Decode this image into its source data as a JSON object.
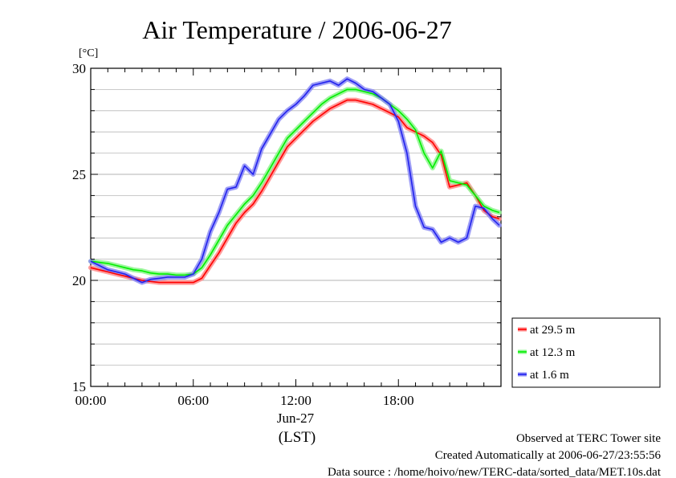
{
  "chart_data": {
    "type": "line",
    "title": "Air Temperature / 2006-06-27",
    "y_unit_label": "[°C]",
    "ylim": [
      15,
      30
    ],
    "y_ticks": [
      "15",
      "20",
      "25",
      "30"
    ],
    "xlim": [
      0,
      24
    ],
    "x_ticks": [
      "00:00",
      "06:00",
      "12:00",
      "18:00"
    ],
    "x_date_label": "Jun-27",
    "x_axis_label": "(LST)",
    "grid": true,
    "legend_position": "right, below plot",
    "series": [
      {
        "name": "at 29.5 m",
        "color": "#ff0000",
        "x": [
          0,
          0.5,
          1,
          1.5,
          2,
          2.5,
          3,
          3.5,
          4,
          4.5,
          5,
          5.5,
          6,
          6.5,
          7,
          7.5,
          8,
          8.5,
          9,
          9.5,
          10,
          10.5,
          11,
          11.5,
          12,
          12.5,
          13,
          13.5,
          14,
          14.5,
          15,
          15.5,
          16,
          16.5,
          17,
          17.5,
          18,
          18.5,
          19,
          19.5,
          20,
          20.5,
          21,
          21.5,
          22,
          22.5,
          23,
          23.5,
          23.9
        ],
        "values": [
          20.6,
          20.5,
          20.4,
          20.3,
          20.2,
          20.1,
          20.0,
          19.95,
          19.9,
          19.9,
          19.9,
          19.9,
          19.9,
          20.1,
          20.7,
          21.3,
          22.0,
          22.7,
          23.2,
          23.6,
          24.2,
          24.9,
          25.6,
          26.3,
          26.7,
          27.1,
          27.5,
          27.8,
          28.1,
          28.3,
          28.5,
          28.5,
          28.4,
          28.3,
          28.1,
          27.9,
          27.7,
          27.2,
          27.0,
          26.8,
          26.5,
          25.9,
          24.4,
          24.5,
          24.6,
          24.0,
          23.3,
          23.0,
          22.9
        ]
      },
      {
        "name": "at 12.3 m",
        "color": "#00ee00",
        "x": [
          0,
          0.5,
          1,
          1.5,
          2,
          2.5,
          3,
          3.5,
          4,
          4.5,
          5,
          5.5,
          6,
          6.5,
          7,
          7.5,
          8,
          8.5,
          9,
          9.5,
          10,
          10.5,
          11,
          11.5,
          12,
          12.5,
          13,
          13.5,
          14,
          14.5,
          15,
          15.5,
          16,
          16.5,
          17,
          17.5,
          18,
          18.5,
          19,
          19.5,
          20,
          20.5,
          21,
          21.5,
          22,
          22.5,
          23,
          23.5,
          23.9
        ],
        "values": [
          20.9,
          20.85,
          20.8,
          20.7,
          20.6,
          20.5,
          20.45,
          20.35,
          20.3,
          20.3,
          20.25,
          20.25,
          20.3,
          20.6,
          21.2,
          21.9,
          22.6,
          23.1,
          23.6,
          24.0,
          24.6,
          25.3,
          26.0,
          26.7,
          27.1,
          27.5,
          27.9,
          28.3,
          28.6,
          28.8,
          29.0,
          29.0,
          28.9,
          28.8,
          28.6,
          28.3,
          28.0,
          27.6,
          27.1,
          26.0,
          25.3,
          26.1,
          24.7,
          24.6,
          24.5,
          24.0,
          23.5,
          23.3,
          23.2
        ]
      },
      {
        "name": "at 1.6 m",
        "color": "#2222ee",
        "x": [
          0,
          0.5,
          1,
          1.5,
          2,
          2.5,
          3,
          3.5,
          4,
          4.5,
          5,
          5.5,
          6,
          6.5,
          7,
          7.5,
          8,
          8.5,
          9,
          9.5,
          10,
          10.5,
          11,
          11.5,
          12,
          12.5,
          13,
          13.5,
          14,
          14.5,
          15,
          15.5,
          16,
          16.5,
          17,
          17.5,
          18,
          18.5,
          19,
          19.5,
          20,
          20.5,
          21,
          21.5,
          22,
          22.5,
          23,
          23.5,
          23.9
        ],
        "values": [
          20.9,
          20.7,
          20.5,
          20.4,
          20.3,
          20.1,
          19.9,
          20.05,
          20.1,
          20.15,
          20.15,
          20.15,
          20.3,
          21.0,
          22.3,
          23.2,
          24.3,
          24.4,
          25.4,
          25.0,
          26.2,
          26.9,
          27.6,
          28.0,
          28.3,
          28.7,
          29.2,
          29.3,
          29.4,
          29.2,
          29.5,
          29.3,
          29.0,
          28.9,
          28.6,
          28.3,
          27.5,
          26.0,
          23.5,
          22.5,
          22.4,
          21.8,
          22.0,
          21.8,
          22.0,
          23.5,
          23.4,
          22.9,
          22.6
        ]
      }
    ]
  },
  "footer": {
    "line1": "Observed at TERC Tower site",
    "line2": "Created Automatically at 2006-06-27/23:55:56",
    "line3": "Data source : /home/hoivo/new/TERC-data/sorted_data/MET.10s.dat"
  }
}
